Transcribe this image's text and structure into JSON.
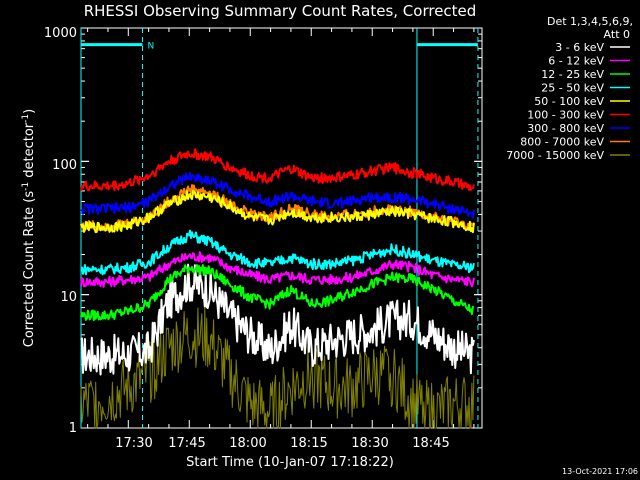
{
  "chart_data": {
    "type": "line",
    "title": "RHESSI Observing Summary Count Rates, Corrected",
    "xlabel": "Start Time (10-Jan-07 17:18:22)",
    "ylabel_main": "Corrected Count Rate (s",
    "ylabel_sup1": "-1",
    "ylabel_mid": " detector",
    "ylabel_sup2": "-1",
    "ylabel_end": ")",
    "ylim": [
      1,
      1000
    ],
    "yscale": "log",
    "xlim": [
      "17:18:22",
      "18:57:00"
    ],
    "x_ticks": [
      "17:30",
      "17:45",
      "18:00",
      "18:15",
      "18:30",
      "18:45"
    ],
    "y_ticks": [
      "1",
      "10",
      "100",
      "1000"
    ],
    "legend_header": [
      "Det 1,3,4,5,6,9,",
      "Att 0"
    ],
    "legend_placement": "top-right, outside plot",
    "background": "#000000",
    "axis_color": "#ffffff",
    "annotations": {
      "night_marker_label": "N",
      "cyan_vertical_solid": [
        "17:18:22",
        "18:41:00"
      ],
      "cyan_vertical_dashed": [
        "17:33:30",
        "18:56:00"
      ],
      "cyan_bars": [
        [
          "17:18:22",
          "17:33:30"
        ],
        [
          "18:41:00",
          "18:56:00"
        ]
      ],
      "cyan_bar_level": 750
    },
    "x": [
      "17:20",
      "17:25",
      "17:30",
      "17:35",
      "17:40",
      "17:45",
      "17:50",
      "17:55",
      "18:00",
      "18:05",
      "18:10",
      "18:15",
      "18:20",
      "18:25",
      "18:30",
      "18:35",
      "18:40",
      "18:45",
      "18:50",
      "18:55"
    ],
    "series": [
      {
        "name": "3 - 6 keV",
        "color": "#ffffff",
        "values": [
          3.5,
          3.5,
          3.6,
          3.8,
          9,
          12.5,
          11,
          7,
          5,
          3.8,
          6,
          4,
          4.5,
          5,
          5.5,
          6.5,
          6.5,
          5,
          4,
          3.5
        ]
      },
      {
        "name": "6 - 12 keV",
        "color": "#ff00ff",
        "values": [
          12.5,
          12.5,
          13,
          13.5,
          17,
          19.5,
          19,
          16,
          14,
          13,
          14,
          13,
          13,
          13.5,
          15,
          17,
          16,
          14,
          13,
          12.5
        ]
      },
      {
        "name": "12 - 25 keV",
        "color": "#00ff00",
        "values": [
          7,
          7,
          7.5,
          8.5,
          13,
          16,
          15,
          12,
          9.5,
          8.5,
          11,
          8.5,
          9,
          10.5,
          12,
          13.5,
          13,
          11,
          9,
          7.5
        ]
      },
      {
        "name": "25 - 50 keV",
        "color": "#00ffff",
        "values": [
          15.5,
          15.5,
          16,
          17.5,
          23,
          28,
          25,
          20,
          17.5,
          17,
          19,
          17,
          17,
          18,
          20,
          22,
          20,
          18,
          16.5,
          16
        ]
      },
      {
        "name": "50 - 100 keV",
        "color": "#ffff00",
        "values": [
          32,
          32,
          33,
          38,
          48,
          56,
          54,
          46,
          38,
          36,
          42,
          38,
          38,
          38,
          40,
          42,
          40,
          37,
          35,
          32
        ]
      },
      {
        "name": "100 - 300 keV",
        "color": "#ff0000",
        "values": [
          65,
          65,
          68,
          78,
          100,
          115,
          108,
          90,
          78,
          75,
          88,
          75,
          75,
          78,
          85,
          90,
          82,
          75,
          70,
          62
        ]
      },
      {
        "name": "300 - 800 keV",
        "color": "#0000ff",
        "values": [
          44,
          44,
          45,
          50,
          65,
          77,
          72,
          62,
          54,
          50,
          55,
          50,
          48,
          50,
          54,
          54,
          52,
          48,
          44,
          40
        ]
      },
      {
        "name": "800 - 7000 keV",
        "color": "#ff8000",
        "values": [
          33,
          33,
          34,
          38,
          50,
          62,
          58,
          48,
          40,
          38,
          44,
          40,
          38,
          40,
          42,
          44,
          42,
          38,
          35,
          32
        ]
      },
      {
        "name": "7000 - 15000 keV",
        "color": "#808000",
        "values": [
          1.5,
          1.7,
          2,
          2.5,
          4,
          5,
          4.5,
          2.5,
          1.5,
          1.3,
          2,
          2.5,
          2,
          2,
          2.5,
          2.5,
          1.5,
          1.3,
          1.5,
          1.5
        ]
      }
    ]
  },
  "footer": {
    "timestamp": "13-Oct-2021 17:06"
  }
}
